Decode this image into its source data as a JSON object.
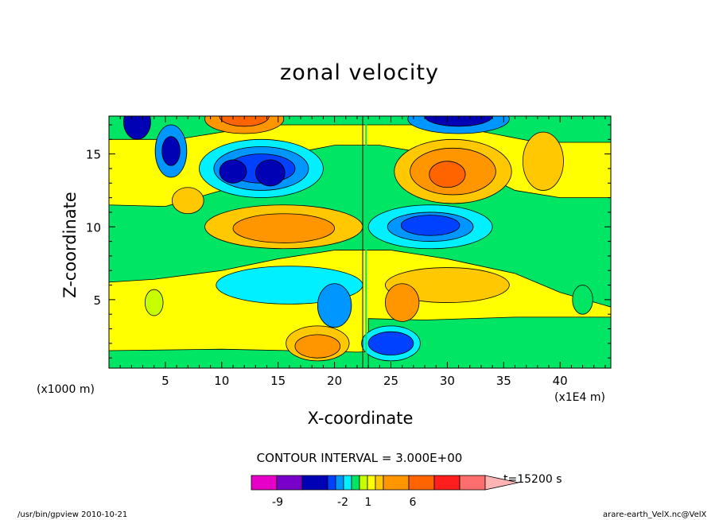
{
  "title": "zonal velocity",
  "chart_data": {
    "type": "heatmap",
    "title": "zonal velocity",
    "xlabel": "X-coordinate",
    "ylabel": "Z-coordinate",
    "x_unit_label": "(x1000 m)",
    "x_unit_label_secondary": "(x1E4 m)",
    "xlim": [
      0,
      44.5
    ],
    "ylim": [
      0.3,
      17.6
    ],
    "xticks": [
      5,
      10,
      15,
      20,
      25,
      30,
      35,
      40
    ],
    "yticks": [
      5,
      10,
      15
    ],
    "contour_interval_label": "CONTOUR INTERVAL = 3.000E+00",
    "time_label": "t=15200 s",
    "colorbar": {
      "tick_labels": [
        "-9",
        "-2",
        "1",
        "6"
      ],
      "colors": [
        "#e600c8",
        "#7800c8",
        "#0000b4",
        "#0040ff",
        "#0096ff",
        "#00f0ff",
        "#00e664",
        "#c8ff00",
        "#ffff00",
        "#ffc800",
        "#ff9600",
        "#ff6400",
        "#ff1e1e",
        "#ff6e6e",
        "#ffb4b4"
      ]
    },
    "regions": [
      {
        "level": "negative-strong",
        "cx": 13.5,
        "cz": 14.0,
        "rx": 2.2,
        "rz": 0.9
      },
      {
        "level": "negative-strong",
        "cx": 28.5,
        "cz": 10.0,
        "rx": 2.3,
        "rz": 0.9
      },
      {
        "level": "negative-strong",
        "cx": 25.0,
        "cz": 2.0,
        "rx": 2.2,
        "rz": 0.7
      },
      {
        "level": "positive-strong",
        "cx": 15.5,
        "cz": 10.0,
        "rx": 3.0,
        "rz": 0.8
      },
      {
        "level": "positive-strong",
        "cx": 30.5,
        "cz": 14.0,
        "rx": 3.0,
        "rz": 1.2
      },
      {
        "level": "positive-strong",
        "cx": 18.5,
        "cz": 1.8,
        "rx": 2.3,
        "rz": 0.8
      }
    ]
  },
  "footer_left": "/usr/bin/gpview  2010-10-21",
  "footer_right": "arare-earth_VelX.nc@VelX"
}
